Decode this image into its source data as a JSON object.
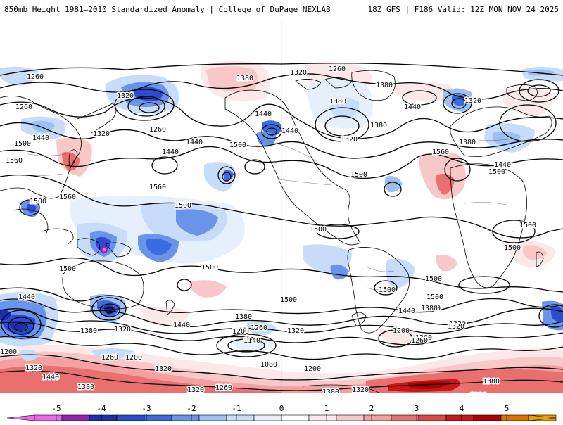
{
  "header": {
    "title": "850mb Height 1981–2010 Standardized Anomaly | College of DuPage NEXLAB",
    "run_info": "18Z GFS | F186 Valid: 12Z MON NOV 24 2025"
  },
  "map": {
    "field": "850mb height",
    "projection": "global cylindrical",
    "contour_labels": [
      "1260",
      "1380",
      "1320",
      "1320",
      "1260",
      "1380",
      "1320",
      "1260",
      "1440",
      "1380",
      "1440",
      "1320",
      "1260",
      "1440",
      "1500",
      "1380",
      "1440",
      "1500",
      "1560",
      "1440",
      "1320",
      "1380",
      "1440",
      "1500",
      "1560",
      "1560",
      "1440",
      "1500",
      "1560",
      "1500",
      "1500",
      "1500",
      "1500",
      "1500",
      "1500",
      "1500",
      "1500",
      "1500",
      "1500",
      "1440",
      "1380",
      "1440",
      "1320",
      "1260",
      "1200",
      "1140",
      "1080",
      "1200",
      "1260",
      "1320",
      "1200",
      "1260",
      "1380",
      "1320",
      "1380",
      "1320",
      "1260",
      "1320",
      "1440",
      "1200",
      "1320",
      "1380",
      "1320",
      "1320",
      "1380",
      "1200",
      "1260",
      "1380",
      "1500",
      "1440",
      "1380",
      "1320"
    ]
  },
  "colorbar": {
    "ticks": [
      "-5",
      "-4",
      "-3",
      "-2",
      "-1",
      "0",
      "1",
      "2",
      "3",
      "4",
      "5"
    ],
    "colors": {
      "neg5": "#ee66ee",
      "neg45": "#9a1fb4",
      "neg4": "#1c2fb0",
      "neg35": "#2c4cd0",
      "neg3": "#3c6ae0",
      "neg25": "#6a94ea",
      "neg2": "#9cc0f2",
      "neg15": "#c6dcf8",
      "neg1": "#e6f0fc",
      "zero": "#ffffff",
      "pos1": "#fce8e8",
      "pos15": "#f8c8c8",
      "pos2": "#f2a0a0",
      "pos25": "#ea7070",
      "pos3": "#e04848",
      "pos35": "#c81818",
      "pos4": "#b00000",
      "pos45": "#e07000",
      "pos5": "#f0a000"
    }
  }
}
